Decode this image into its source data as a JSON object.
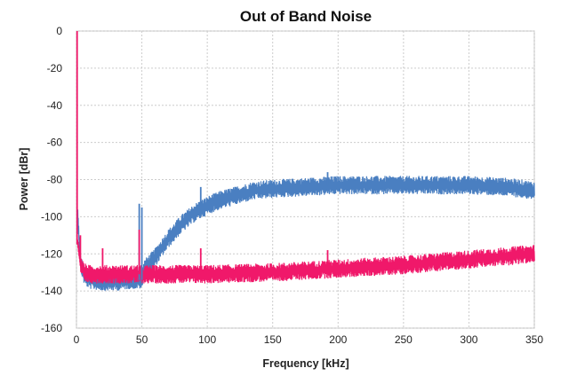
{
  "chart_data": {
    "type": "line",
    "title": "Out of Band Noise",
    "xlabel": "Frequency [kHz]",
    "ylabel": "Power [dBr]",
    "xlim": [
      0,
      350
    ],
    "ylim": [
      -160,
      0
    ],
    "xticks": [
      "0",
      "50",
      "100",
      "150",
      "200",
      "250",
      "300",
      "350"
    ],
    "yticks": [
      "0",
      "-20",
      "-40",
      "-60",
      "-80",
      "-100",
      "-120",
      "-140",
      "-160"
    ],
    "grid": true,
    "series": [
      {
        "name": "blue",
        "color": "#4a7fc1",
        "noise_band_db": 5,
        "x": [
          1,
          3,
          6,
          10,
          20,
          30,
          40,
          50,
          52,
          60,
          70,
          80,
          90,
          100,
          110,
          120,
          135,
          150,
          175,
          200,
          250,
          300,
          330,
          350
        ],
        "y": [
          -100,
          -125,
          -132,
          -134,
          -135,
          -135,
          -134,
          -134,
          -128,
          -122,
          -112,
          -104,
          -98,
          -94,
          -91,
          -89,
          -86,
          -85,
          -84,
          -83,
          -83,
          -83,
          -84,
          -86
        ],
        "spikes": [
          [
            48,
            -93
          ],
          [
            50,
            -95
          ],
          [
            95,
            -84
          ],
          [
            192,
            -76
          ]
        ]
      },
      {
        "name": "pink",
        "color": "#f0186a",
        "noise_band_db": 5,
        "x": [
          1,
          3,
          6,
          10,
          30,
          60,
          100,
          150,
          200,
          250,
          300,
          350
        ],
        "y": [
          -115,
          -126,
          -130,
          -131,
          -131,
          -131,
          -131,
          -130,
          -128,
          -126,
          -123,
          -120
        ],
        "spikes": [
          [
            0.5,
            0
          ],
          [
            3,
            -110
          ],
          [
            20,
            -117
          ],
          [
            48,
            -107
          ],
          [
            95,
            -117
          ],
          [
            192,
            -118
          ]
        ]
      }
    ]
  }
}
